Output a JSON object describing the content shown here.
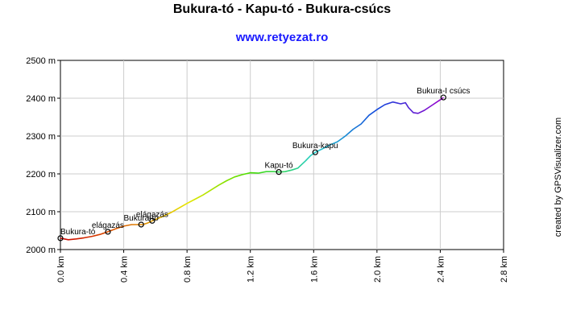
{
  "title": "Bukura-tó - Kapu-tó - Bukura-csúcs",
  "subtitle": "www.retyezat.ro",
  "credit": "created by GPSVisualizer.com",
  "chart_data": {
    "type": "line",
    "xlim": [
      0,
      2.8
    ],
    "ylim": [
      2000,
      2500
    ],
    "x_ticks": [
      "0.0 km",
      "0.4 km",
      "0.8 km",
      "1.2 km",
      "1.6 km",
      "2.0 km",
      "2.4 km",
      "2.8 km"
    ],
    "y_ticks": [
      "2000 m",
      "2100 m",
      "2200 m",
      "2300 m",
      "2400 m",
      "2500 m"
    ],
    "grid": true,
    "profile": [
      [
        0.0,
        2030
      ],
      [
        0.05,
        2026
      ],
      [
        0.1,
        2028
      ],
      [
        0.15,
        2031
      ],
      [
        0.2,
        2035
      ],
      [
        0.25,
        2040
      ],
      [
        0.3,
        2047
      ],
      [
        0.35,
        2055
      ],
      [
        0.4,
        2062
      ],
      [
        0.45,
        2066
      ],
      [
        0.5,
        2066
      ],
      [
        0.52,
        2066
      ],
      [
        0.55,
        2070
      ],
      [
        0.58,
        2076
      ],
      [
        0.65,
        2088
      ],
      [
        0.7,
        2098
      ],
      [
        0.75,
        2110
      ],
      [
        0.8,
        2122
      ],
      [
        0.85,
        2133
      ],
      [
        0.9,
        2144
      ],
      [
        0.95,
        2157
      ],
      [
        1.0,
        2170
      ],
      [
        1.05,
        2182
      ],
      [
        1.1,
        2192
      ],
      [
        1.15,
        2198
      ],
      [
        1.2,
        2203
      ],
      [
        1.25,
        2202
      ],
      [
        1.3,
        2206
      ],
      [
        1.35,
        2206
      ],
      [
        1.38,
        2205
      ],
      [
        1.42,
        2206
      ],
      [
        1.46,
        2210
      ],
      [
        1.5,
        2215
      ],
      [
        1.55,
        2235
      ],
      [
        1.58,
        2248
      ],
      [
        1.61,
        2257
      ],
      [
        1.65,
        2265
      ],
      [
        1.7,
        2276
      ],
      [
        1.75,
        2285
      ],
      [
        1.8,
        2300
      ],
      [
        1.85,
        2318
      ],
      [
        1.9,
        2332
      ],
      [
        1.95,
        2355
      ],
      [
        2.0,
        2370
      ],
      [
        2.05,
        2383
      ],
      [
        2.1,
        2390
      ],
      [
        2.15,
        2385
      ],
      [
        2.18,
        2388
      ],
      [
        2.2,
        2375
      ],
      [
        2.23,
        2362
      ],
      [
        2.26,
        2360
      ],
      [
        2.3,
        2368
      ],
      [
        2.35,
        2382
      ],
      [
        2.4,
        2396
      ],
      [
        2.42,
        2402
      ]
    ],
    "waypoints": [
      {
        "name": "Bukura-tó",
        "x": 0.0,
        "y": 2030
      },
      {
        "name": "elágazás",
        "x": 0.3,
        "y": 2047
      },
      {
        "name": "Bukura-tó",
        "x": 0.51,
        "y": 2066
      },
      {
        "name": "elágazás",
        "x": 0.58,
        "y": 2076
      },
      {
        "name": "Kapu-tó",
        "x": 1.38,
        "y": 2205
      },
      {
        "name": "Bukura-kapu",
        "x": 1.61,
        "y": 2257
      },
      {
        "name": "Bukura-I csúcs",
        "x": 2.42,
        "y": 2402
      }
    ],
    "gradient_colors": [
      "#cc0000",
      "#dd6600",
      "#e6e600",
      "#44dd00",
      "#22cccc",
      "#1144dd",
      "#9900cc"
    ]
  }
}
